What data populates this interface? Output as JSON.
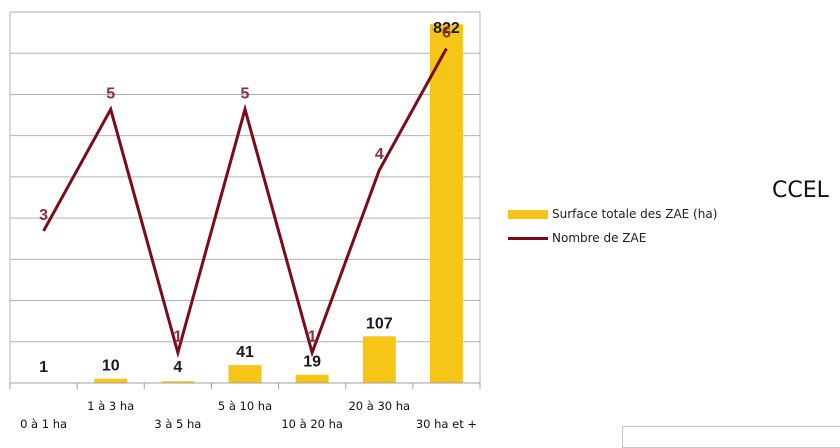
{
  "chart_data": {
    "type": "bar",
    "categories": [
      "0 à 1 ha",
      "1 à 3 ha",
      "3 à 5 ha",
      "5 à 10 ha",
      "10 à 20 ha",
      "20 à 30 ha",
      "30 ha et +"
    ],
    "series": [
      {
        "name": "Surface totale des  ZAE (ha)",
        "type": "bar",
        "axis": "left",
        "values": [
          1,
          10,
          4,
          41,
          19,
          107,
          822
        ]
      },
      {
        "name": "Nombre de ZAE",
        "type": "line",
        "axis": "right",
        "values": [
          3,
          5,
          1,
          5,
          1,
          4,
          6
        ]
      }
    ],
    "ylim_bars": [
      0,
      850
    ],
    "ylim_line": [
      0.5,
      6.6
    ],
    "grid": true,
    "legend_position": "right",
    "colors": {
      "bar": "#f5c518",
      "line": "#7b0a1a",
      "line_label": "#8a2f3f",
      "bar_label": "#1a1a1a"
    }
  },
  "side_label": "CCEL"
}
